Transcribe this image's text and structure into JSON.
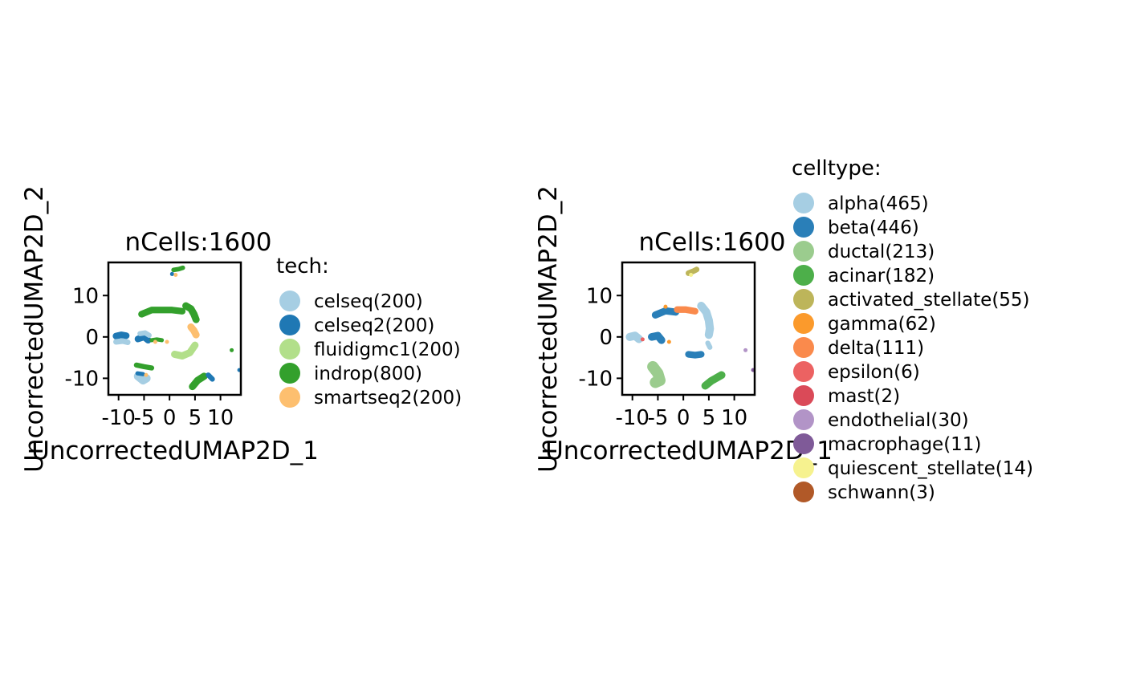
{
  "chart_data": [
    {
      "type": "scatter",
      "title": "nCells:1600",
      "xlabel": "UncorrectedUMAP2D_1",
      "ylabel": "UncorrectedUMAP2D_2",
      "xlim": [
        -12,
        14
      ],
      "ylim": [
        -14,
        18
      ],
      "xticks": [
        -10,
        -5,
        0,
        5,
        10
      ],
      "xtick_labels": [
        "-10",
        "-5",
        "0",
        "5",
        "10"
      ],
      "yticks": [
        -10,
        0,
        10
      ],
      "ytick_labels": [
        "-10",
        "0",
        "10"
      ],
      "grid": false,
      "legend": {
        "title": "tech:",
        "position": "right",
        "entries": [
          {
            "label": "celseq(200)",
            "color": "#A6CEE3"
          },
          {
            "label": "celseq2(200)",
            "color": "#1F78B4"
          },
          {
            "label": "fluidigmc1(200)",
            "color": "#B2DF8A"
          },
          {
            "label": "indrop(800)",
            "color": "#33A02C"
          },
          {
            "label": "smartseq2(200)",
            "color": "#FDBF6F"
          }
        ]
      },
      "clusters": [
        {
          "color": "#33A02C",
          "shape": "band",
          "points": [
            [
              -5.5,
              5.5
            ],
            [
              -3.5,
              6.5
            ],
            [
              -1.5,
              6.5
            ],
            [
              0.5,
              6.5
            ],
            [
              2.5,
              6.2
            ]
          ],
          "width": 1.3
        },
        {
          "color": "#33A02C",
          "shape": "band",
          "points": [
            [
              3.2,
              7.5
            ],
            [
              4.2,
              6.8
            ],
            [
              4.8,
              5.5
            ],
            [
              5.2,
              4.2
            ]
          ],
          "width": 1.4
        },
        {
          "color": "#33A02C",
          "shape": "band",
          "points": [
            [
              0.8,
              16.2
            ],
            [
              1.8,
              16.4
            ],
            [
              2.6,
              16.7
            ]
          ],
          "width": 0.9
        },
        {
          "color": "#1F78B4",
          "shape": "blob",
          "points": [
            [
              0.5,
              15.2
            ]
          ],
          "width": 0.8
        },
        {
          "color": "#FDBF6F",
          "shape": "blob",
          "points": [
            [
              1.2,
              15.0
            ]
          ],
          "width": 0.6
        },
        {
          "color": "#1F78B4",
          "shape": "band",
          "points": [
            [
              -10.5,
              0.2
            ],
            [
              -9.5,
              0.5
            ],
            [
              -8.5,
              0.3
            ]
          ],
          "width": 1.3
        },
        {
          "color": "#A6CEE3",
          "shape": "band",
          "points": [
            [
              -10.5,
              -1.2
            ],
            [
              -9.2,
              -1.0
            ],
            [
              -8.2,
              -1.3
            ]
          ],
          "width": 1.1
        },
        {
          "color": "#1F78B4",
          "shape": "band",
          "points": [
            [
              -6.2,
              -0.5
            ],
            [
              -5.0,
              0.0
            ],
            [
              -4.2,
              -0.8
            ]
          ],
          "width": 1.3
        },
        {
          "color": "#A6CEE3",
          "shape": "band",
          "points": [
            [
              -5.8,
              0.8
            ],
            [
              -4.8,
              1.0
            ],
            [
              -4.0,
              0.4
            ]
          ],
          "width": 1.0
        },
        {
          "color": "#33A02C",
          "shape": "band",
          "points": [
            [
              -3.5,
              -0.8
            ],
            [
              -2.5,
              -0.6
            ],
            [
              -1.5,
              -0.8
            ]
          ],
          "width": 0.8
        },
        {
          "color": "#B2DF8A",
          "shape": "band",
          "points": [
            [
              1.0,
              -4.2
            ],
            [
              2.5,
              -4.6
            ],
            [
              4.0,
              -3.8
            ],
            [
              5.0,
              -2.0
            ]
          ],
          "width": 1.4
        },
        {
          "color": "#FDBF6F",
          "shape": "band",
          "points": [
            [
              4.2,
              2.4
            ],
            [
              4.8,
              1.5
            ],
            [
              5.2,
              0.5
            ]
          ],
          "width": 1.4
        },
        {
          "color": "#33A02C",
          "shape": "band",
          "points": [
            [
              -6.5,
              -6.8
            ],
            [
              -5.0,
              -7.2
            ],
            [
              -3.5,
              -7.5
            ]
          ],
          "width": 1.0
        },
        {
          "color": "#A6CEE3",
          "shape": "band",
          "points": [
            [
              -6.2,
              -9.5
            ],
            [
              -5.2,
              -10.5
            ],
            [
              -4.5,
              -10.0
            ]
          ],
          "width": 1.6
        },
        {
          "color": "#1F78B4",
          "shape": "band",
          "points": [
            [
              -6.3,
              -8.8
            ],
            [
              -5.2,
              -9.0
            ]
          ],
          "width": 0.8
        },
        {
          "color": "#FDBF6F",
          "shape": "blob",
          "points": [
            [
              -4.6,
              -9.2
            ]
          ],
          "width": 0.8
        },
        {
          "color": "#33A02C",
          "shape": "band",
          "points": [
            [
              4.5,
              -12.0
            ],
            [
              5.5,
              -10.5
            ],
            [
              6.8,
              -9.5
            ]
          ],
          "width": 1.4
        },
        {
          "color": "#1F78B4",
          "shape": "band",
          "points": [
            [
              7.6,
              -9.2
            ],
            [
              8.4,
              -10.2
            ]
          ],
          "width": 1.0
        },
        {
          "color": "#33A02C",
          "shape": "blob",
          "points": [
            [
              12.2,
              -3.2
            ]
          ],
          "width": 0.7
        },
        {
          "color": "#1F78B4",
          "shape": "blob",
          "points": [
            [
              13.7,
              -8.0
            ]
          ],
          "width": 0.5
        },
        {
          "color": "#FDBF6F",
          "shape": "blob",
          "points": [
            [
              -2.8,
              -1.2
            ]
          ],
          "width": 0.5
        },
        {
          "color": "#FDBF6F",
          "shape": "blob",
          "points": [
            [
              -0.5,
              -1.2
            ]
          ],
          "width": 0.5
        }
      ]
    },
    {
      "type": "scatter",
      "title": "nCells:1600",
      "xlabel": "UncorrectedUMAP2D_1",
      "ylabel": "UncorrectedUMAP2D_2",
      "xlim": [
        -12,
        14
      ],
      "ylim": [
        -14,
        18
      ],
      "xticks": [
        -10,
        -5,
        0,
        5,
        10
      ],
      "xtick_labels": [
        "-10",
        "-5",
        "0",
        "5",
        "10"
      ],
      "yticks": [
        -10,
        0,
        10
      ],
      "ytick_labels": [
        "-10",
        "0",
        "10"
      ],
      "grid": false,
      "legend": {
        "title": "celltype:",
        "position": "right",
        "entries": [
          {
            "label": "alpha(465)",
            "color": "#A6CEE3"
          },
          {
            "label": "beta(446)",
            "color": "#2A7FB8"
          },
          {
            "label": "ductal(213)",
            "color": "#9BCC8E"
          },
          {
            "label": "acinar(182)",
            "color": "#4DAF4A"
          },
          {
            "label": "activated_stellate(55)",
            "color": "#BDB55A"
          },
          {
            "label": "gamma(62)",
            "color": "#FB9A2C"
          },
          {
            "label": "delta(111)",
            "color": "#FA8A4C"
          },
          {
            "label": "epsilon(6)",
            "color": "#EC6262"
          },
          {
            "label": "mast(2)",
            "color": "#DA4A58"
          },
          {
            "label": "endothelial(30)",
            "color": "#B294C7"
          },
          {
            "label": "macrophage(11)",
            "color": "#7F5A98"
          },
          {
            "label": "quiescent_stellate(14)",
            "color": "#F6F28F"
          },
          {
            "label": "schwann(3)",
            "color": "#B15928"
          }
        ]
      },
      "clusters": [
        {
          "color": "#2A7FB8",
          "shape": "band",
          "points": [
            [
              -5.5,
              5.3
            ],
            [
              -3.5,
              6.3
            ],
            [
              -1.5,
              6.0
            ]
          ],
          "width": 1.4
        },
        {
          "color": "#FA8A4C",
          "shape": "band",
          "points": [
            [
              -1.2,
              6.6
            ],
            [
              0.5,
              6.6
            ],
            [
              2.3,
              6.2
            ]
          ],
          "width": 1.3
        },
        {
          "color": "#FB9A2C",
          "shape": "blob",
          "points": [
            [
              -3.5,
              7.3
            ]
          ],
          "width": 0.5
        },
        {
          "color": "#A6CEE3",
          "shape": "band",
          "points": [
            [
              3.5,
              7.5
            ],
            [
              4.5,
              6.0
            ],
            [
              5.0,
              4.0
            ],
            [
              5.2,
              2.0
            ],
            [
              5.0,
              0.5
            ]
          ],
          "width": 1.6
        },
        {
          "color": "#A6CEE3",
          "shape": "band",
          "points": [
            [
              4.8,
              -1.5
            ],
            [
              5.2,
              -2.5
            ]
          ],
          "width": 1.0
        },
        {
          "color": "#BDB55A",
          "shape": "band",
          "points": [
            [
              1.0,
              15.4
            ],
            [
              2.0,
              15.9
            ],
            [
              2.6,
              16.3
            ]
          ],
          "width": 1.1
        },
        {
          "color": "#F6F28F",
          "shape": "blob",
          "points": [
            [
              1.5,
              15.0
            ]
          ],
          "width": 0.6
        },
        {
          "color": "#A6CEE3",
          "shape": "band",
          "points": [
            [
              -10.5,
              0.0
            ],
            [
              -9.5,
              0.3
            ],
            [
              -8.7,
              -0.5
            ]
          ],
          "width": 1.6
        },
        {
          "color": "#2A7FB8",
          "shape": "band",
          "points": [
            [
              -6.2,
              0.0
            ],
            [
              -5.0,
              0.3
            ],
            [
              -4.3,
              -0.8
            ]
          ],
          "width": 1.5
        },
        {
          "color": "#EC6262",
          "shape": "blob",
          "points": [
            [
              -8.0,
              -0.6
            ]
          ],
          "width": 0.5
        },
        {
          "color": "#FB9A2C",
          "shape": "blob",
          "points": [
            [
              -2.8,
              -1.2
            ]
          ],
          "width": 0.5
        },
        {
          "color": "#2A7FB8",
          "shape": "band",
          "points": [
            [
              1.0,
              -4.2
            ],
            [
              2.3,
              -4.4
            ],
            [
              3.5,
              -4.2
            ]
          ],
          "width": 1.3
        },
        {
          "color": "#9BCC8E",
          "shape": "band",
          "points": [
            [
              -6.0,
              -7.2
            ],
            [
              -5.0,
              -8.8
            ],
            [
              -4.6,
              -10.5
            ],
            [
              -5.5,
              -11.0
            ]
          ],
          "width": 2.2
        },
        {
          "color": "#4DAF4A",
          "shape": "band",
          "points": [
            [
              4.3,
              -11.8
            ],
            [
              5.5,
              -10.6
            ],
            [
              7.5,
              -9.2
            ]
          ],
          "width": 1.5
        },
        {
          "color": "#B294C7",
          "shape": "blob",
          "points": [
            [
              12.2,
              -3.2
            ]
          ],
          "width": 0.7
        },
        {
          "color": "#7F5A98",
          "shape": "blob",
          "points": [
            [
              13.7,
              -8.0
            ]
          ],
          "width": 0.5
        }
      ]
    }
  ]
}
